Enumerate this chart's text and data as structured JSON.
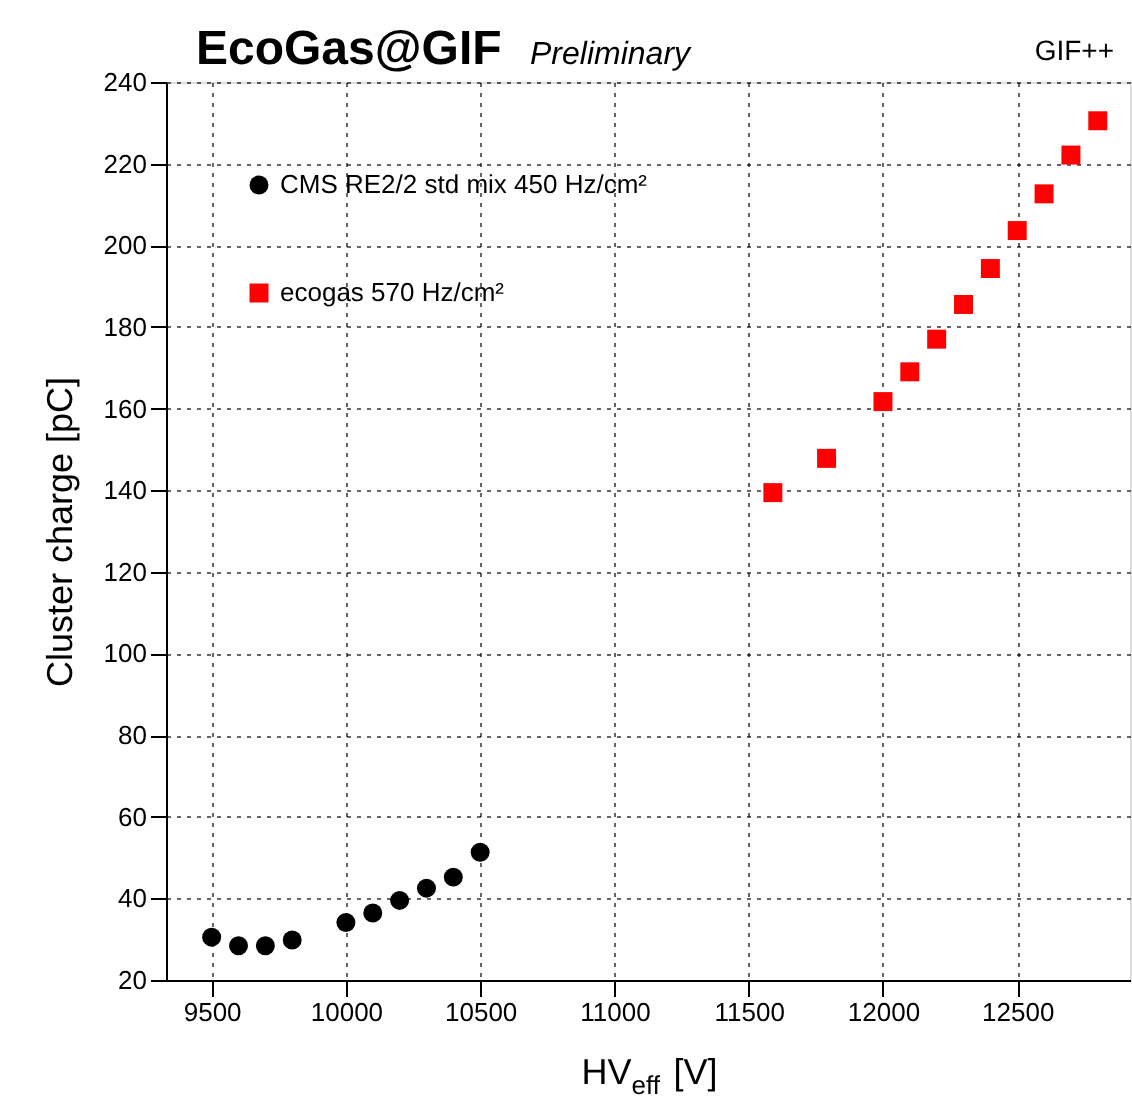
{
  "chart_data": {
    "type": "scatter",
    "title": "EcoGas@GIF",
    "subtitle": "Preliminary",
    "annotations": [
      "GIF++"
    ],
    "xlabel": "HV$_{eff}$ [V]",
    "ylabel": "Cluster charge [pC]",
    "xlim": [
      9330,
      12920
    ],
    "xticks": [
      9500,
      10000,
      10500,
      11000,
      11500,
      12000,
      12500
    ],
    "ylim": [
      20,
      240
    ],
    "yticks": [
      20,
      40,
      60,
      80,
      100,
      120,
      140,
      160,
      180,
      200,
      220,
      240
    ],
    "grid": true,
    "legend": "top left",
    "series": [
      {
        "name": "CMS RE2/2 std mix 450 Hz/cm²",
        "color": "#000000",
        "marker": "circle",
        "x": [
          9500,
          9600,
          9700,
          9800,
          10000,
          10100,
          10200,
          10300,
          10400,
          10500
        ],
        "values": [
          30.5,
          28.4,
          28.4,
          29.8,
          34.1,
          36.4,
          39.5,
          42.5,
          45.2,
          51.3
        ]
      },
      {
        "name": "ecogas 570 Hz/cm²",
        "color": "#ff0000",
        "marker": "square",
        "x": [
          11590,
          11790,
          12000,
          12100,
          12200,
          12300,
          12400,
          12500,
          12600,
          12700,
          12800
        ],
        "values": [
          139.4,
          147.8,
          161.7,
          169.0,
          177.0,
          185.5,
          194.3,
          203.6,
          212.6,
          222.1,
          230.5
        ]
      }
    ]
  }
}
